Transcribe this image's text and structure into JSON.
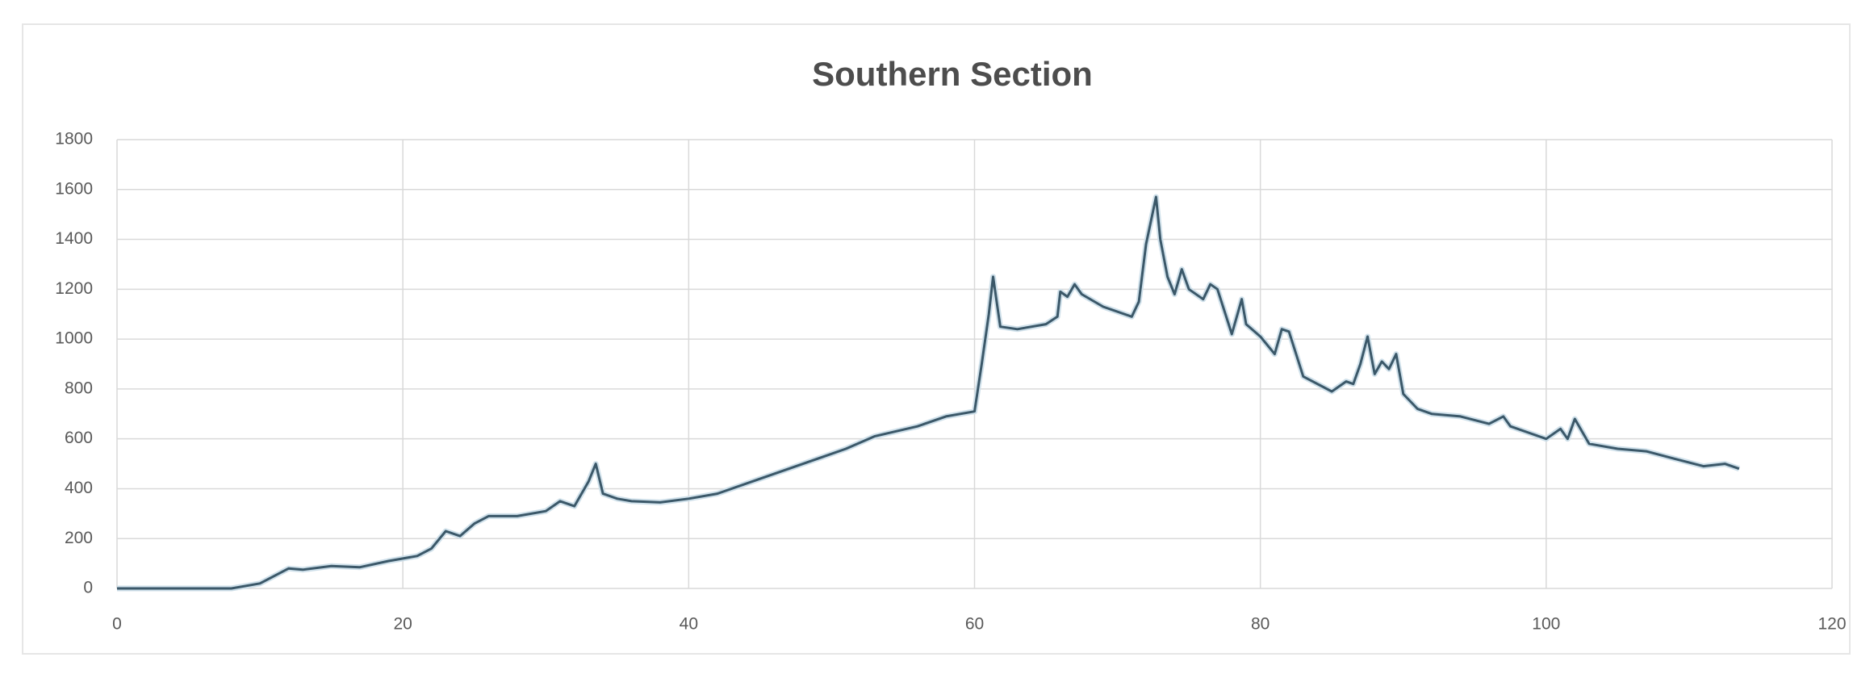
{
  "chart_data": {
    "type": "line",
    "title": "Southern Section",
    "x": [
      0,
      8,
      10,
      12,
      13,
      15,
      17,
      19,
      21,
      22,
      23,
      24,
      25,
      26,
      28,
      30,
      31,
      32,
      33,
      33.5,
      34,
      35,
      36,
      38,
      40,
      42,
      45,
      48,
      51,
      53,
      56,
      58,
      60,
      60.5,
      61,
      61.3,
      61.8,
      63,
      65,
      65.8,
      66,
      66.5,
      67,
      67.5,
      69,
      71,
      71.5,
      72,
      72.7,
      73,
      73.5,
      74,
      74.5,
      75,
      76,
      76.5,
      77,
      78,
      78.7,
      79,
      80,
      81,
      81.5,
      82,
      83,
      85,
      86,
      86.5,
      87,
      87.5,
      88,
      88.5,
      89,
      89.5,
      90,
      91,
      92,
      94,
      96,
      97,
      97.5,
      99,
      100,
      101,
      101.5,
      102,
      103,
      105,
      107,
      109,
      111,
      112.5,
      113.5
    ],
    "values": [
      0,
      0,
      20,
      80,
      75,
      90,
      85,
      110,
      130,
      160,
      230,
      210,
      260,
      290,
      290,
      310,
      350,
      330,
      430,
      500,
      380,
      360,
      350,
      345,
      360,
      380,
      440,
      500,
      560,
      610,
      650,
      690,
      710,
      900,
      1100,
      1250,
      1050,
      1040,
      1060,
      1090,
      1190,
      1170,
      1220,
      1180,
      1130,
      1090,
      1150,
      1380,
      1570,
      1400,
      1250,
      1180,
      1280,
      1200,
      1160,
      1220,
      1200,
      1020,
      1160,
      1060,
      1010,
      940,
      1040,
      1030,
      850,
      790,
      830,
      820,
      900,
      1010,
      860,
      910,
      880,
      940,
      780,
      720,
      700,
      690,
      660,
      690,
      650,
      620,
      600,
      640,
      600,
      680,
      580,
      560,
      550,
      520,
      490,
      500,
      480
    ],
    "color": "#3b5869",
    "xlim": [
      0,
      120
    ],
    "xticks": [
      0,
      20,
      40,
      60,
      80,
      100,
      120
    ],
    "ylim": [
      0,
      1800
    ],
    "yticks": [
      0,
      200,
      400,
      600,
      800,
      1000,
      1200,
      1400,
      1600,
      1800
    ],
    "grid": true
  }
}
